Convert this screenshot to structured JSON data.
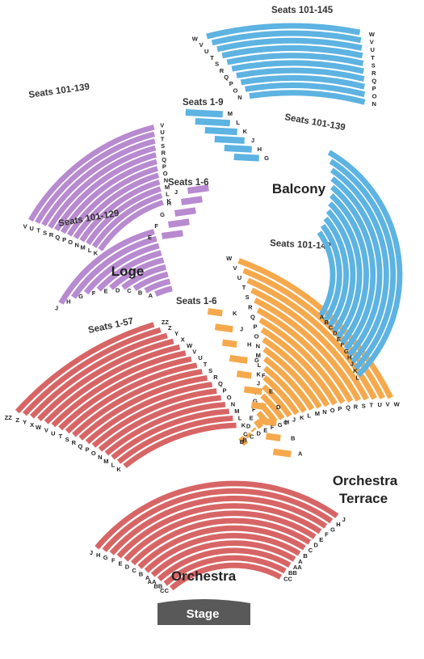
{
  "colors": {
    "balcony": "#5db3e2",
    "loge": "#b88ad0",
    "orchestra_terrace": "#f5a94c",
    "orchestra": "#d86565",
    "stage": "#595959"
  },
  "stage": {
    "label": "Stage"
  },
  "sections": [
    {
      "id": "balcony",
      "name": "Balcony",
      "seat_labels": [
        "Seats 101-145",
        "Seats 1-9",
        "Seats 101-139"
      ],
      "row_groups": [
        [
          "W",
          "V",
          "U",
          "T",
          "S",
          "R",
          "Q",
          "P",
          "O",
          "N"
        ],
        [
          "M",
          "L",
          "K",
          "J",
          "H",
          "G"
        ],
        [
          "L",
          "K",
          "J",
          "H",
          "G",
          "F",
          "E",
          "D",
          "C",
          "B",
          "A"
        ]
      ]
    },
    {
      "id": "loge",
      "name": "Loge",
      "seat_labels": [
        "Seats 101-139",
        "Seats 101-129",
        "Seats 1-6"
      ],
      "row_groups": [
        [
          "V",
          "U",
          "T",
          "S",
          "R",
          "Q",
          "P",
          "O",
          "N",
          "M",
          "L",
          "K"
        ],
        [
          "J",
          "H",
          "G",
          "F",
          "E",
          "D",
          "C",
          "B",
          "A"
        ],
        [
          "J",
          "H",
          "G",
          "F",
          "E"
        ]
      ]
    },
    {
      "id": "orchestra_terrace",
      "name_lines": [
        "Orchestra",
        "Terrace"
      ],
      "seat_labels": [
        "Seats 101-142",
        "Seats 1-6"
      ],
      "row_groups": [
        [
          "W",
          "V",
          "U",
          "T",
          "S",
          "R",
          "Q",
          "P",
          "O",
          "N",
          "M",
          "L",
          "K",
          "J",
          "H",
          "G",
          "F",
          "E",
          "D",
          "C",
          "B"
        ],
        [
          "K",
          "J",
          "H",
          "G",
          "F",
          "E",
          "D",
          "C",
          "B",
          "A"
        ]
      ]
    },
    {
      "id": "orchestra",
      "name": "Orchestra",
      "seat_labels": [
        "Seats 1-57"
      ],
      "row_groups": [
        [
          "ZZ",
          "Z",
          "Y",
          "X",
          "W",
          "V",
          "U",
          "T",
          "S",
          "R",
          "Q",
          "P",
          "O",
          "N",
          "M",
          "L",
          "K"
        ],
        [
          "J",
          "H",
          "G",
          "F",
          "E",
          "D",
          "C",
          "B",
          "A",
          "AA",
          "BB",
          "CC"
        ]
      ]
    }
  ]
}
